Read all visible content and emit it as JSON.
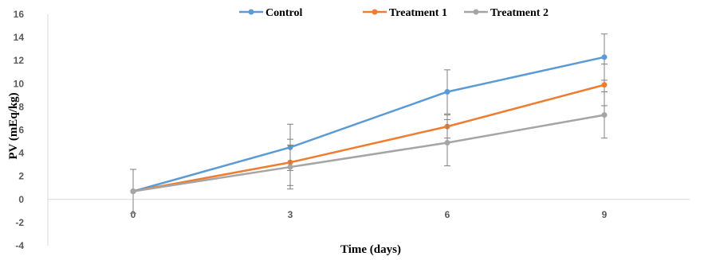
{
  "chart_data": {
    "type": "line",
    "title": "",
    "xlabel": "Time (days)",
    "ylabel": "PV (mEq/kg)",
    "x": [
      0,
      3,
      6,
      9
    ],
    "x_tick_labels": [
      "0",
      "3",
      "6",
      "9"
    ],
    "ylim": [
      -4,
      16
    ],
    "y_ticks": [
      -4,
      -2,
      0,
      2,
      4,
      6,
      8,
      10,
      12,
      14,
      16
    ],
    "y_tick_labels": [
      "-4",
      "-2",
      "0",
      "2",
      "4",
      "6",
      "8",
      "10",
      "12",
      "14",
      "16"
    ],
    "grid": false,
    "legend_position": "top",
    "series": [
      {
        "name": "Control",
        "color": "#5B9BD5",
        "values": [
          0.7,
          4.5,
          9.3,
          12.3
        ],
        "errors": [
          1.9,
          2.0,
          1.9,
          2.0
        ]
      },
      {
        "name": "Treatment 1",
        "color": "#ED7D31",
        "values": [
          0.7,
          3.2,
          6.3,
          9.9
        ],
        "errors": [
          0,
          2.0,
          1.0,
          1.8
        ]
      },
      {
        "name": "Treatment 2",
        "color": "#A5A5A5",
        "values": [
          0.7,
          2.8,
          4.9,
          7.3
        ],
        "errors": [
          0,
          1.9,
          2.0,
          2.0
        ]
      }
    ]
  }
}
